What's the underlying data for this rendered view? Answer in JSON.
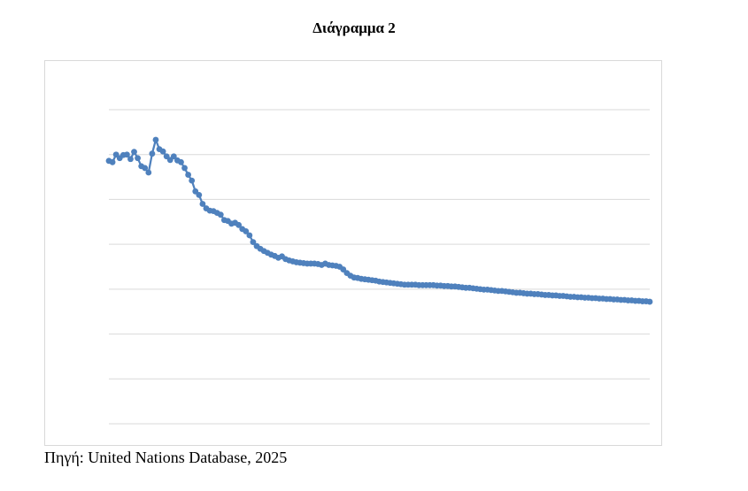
{
  "page": {
    "title": "Διάγραμμα 2",
    "source_note": "Πηγή: United Nations Database, 2025"
  },
  "chart_data": {
    "type": "line",
    "title": "",
    "xlabel": "",
    "ylabel": "",
    "grid": true,
    "legend": "none",
    "ylim": [
      0,
      7
    ],
    "x": [
      1,
      2,
      3,
      4,
      5,
      6,
      7,
      8,
      9,
      10,
      11,
      12,
      13,
      14,
      15,
      16,
      17,
      18,
      19,
      20,
      21,
      22,
      23,
      24,
      25,
      26,
      27,
      28,
      29,
      30,
      31,
      32,
      33,
      34,
      35,
      36,
      37,
      38,
      39,
      40,
      41,
      42,
      43,
      44,
      45,
      46,
      47,
      48,
      49,
      50,
      51,
      52,
      53,
      54,
      55,
      56,
      57,
      58,
      59,
      60,
      61,
      62,
      63,
      64,
      65,
      66,
      67,
      68,
      69,
      70,
      71,
      72,
      73,
      74,
      75,
      76,
      77,
      78,
      79,
      80,
      81,
      82,
      83,
      84,
      85,
      86,
      87,
      88,
      89,
      90,
      91,
      92,
      93,
      94,
      95,
      96,
      97,
      98,
      99,
      100,
      101,
      102,
      103,
      104,
      105,
      106,
      107,
      108,
      109,
      110,
      111,
      112,
      113,
      114,
      115,
      116,
      117,
      118,
      119,
      120,
      121,
      122,
      123,
      124,
      125,
      126,
      127,
      128,
      129,
      130,
      131,
      132,
      133,
      134,
      135,
      136,
      137,
      138,
      139,
      140,
      141,
      142,
      143,
      144,
      145,
      146,
      147,
      148,
      149,
      150,
      151
    ],
    "series": [
      {
        "color": "#4f81bd",
        "values": [
          5.86,
          5.83,
          6.0,
          5.92,
          5.99,
          6.0,
          5.9,
          6.06,
          5.92,
          5.74,
          5.7,
          5.6,
          6.02,
          6.33,
          6.12,
          6.07,
          5.96,
          5.88,
          5.96,
          5.87,
          5.83,
          5.7,
          5.55,
          5.42,
          5.18,
          5.1,
          4.9,
          4.8,
          4.75,
          4.74,
          4.7,
          4.66,
          4.54,
          4.52,
          4.46,
          4.48,
          4.43,
          4.34,
          4.29,
          4.2,
          4.05,
          3.96,
          3.9,
          3.85,
          3.81,
          3.77,
          3.74,
          3.7,
          3.73,
          3.67,
          3.64,
          3.62,
          3.6,
          3.59,
          3.58,
          3.57,
          3.57,
          3.57,
          3.56,
          3.54,
          3.57,
          3.54,
          3.53,
          3.52,
          3.5,
          3.44,
          3.36,
          3.3,
          3.26,
          3.25,
          3.23,
          3.22,
          3.21,
          3.2,
          3.19,
          3.17,
          3.16,
          3.15,
          3.14,
          3.13,
          3.12,
          3.11,
          3.1,
          3.1,
          3.1,
          3.1,
          3.09,
          3.09,
          3.09,
          3.09,
          3.09,
          3.08,
          3.08,
          3.07,
          3.07,
          3.06,
          3.06,
          3.05,
          3.04,
          3.03,
          3.03,
          3.02,
          3.01,
          3.0,
          2.99,
          2.99,
          2.98,
          2.97,
          2.96,
          2.96,
          2.95,
          2.94,
          2.93,
          2.92,
          2.92,
          2.91,
          2.9,
          2.9,
          2.89,
          2.89,
          2.88,
          2.87,
          2.87,
          2.86,
          2.86,
          2.85,
          2.85,
          2.84,
          2.83,
          2.83,
          2.82,
          2.82,
          2.81,
          2.81,
          2.8,
          2.8,
          2.79,
          2.79,
          2.78,
          2.78,
          2.77,
          2.77,
          2.76,
          2.76,
          2.75,
          2.75,
          2.74,
          2.74,
          2.73,
          2.73,
          2.72
        ]
      }
    ]
  }
}
